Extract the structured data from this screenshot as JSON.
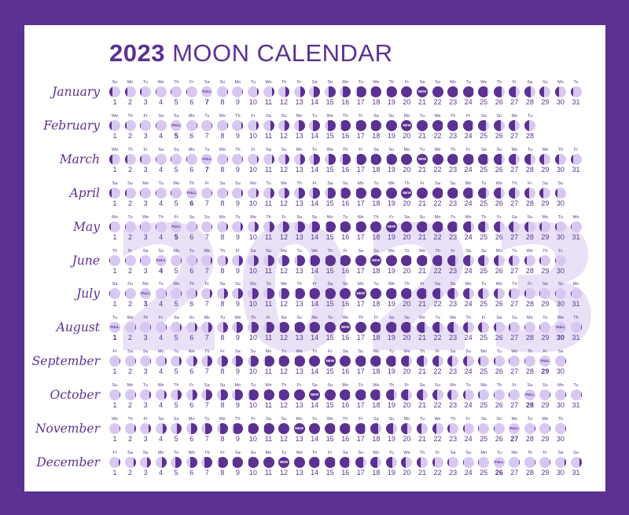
{
  "title": {
    "year": "2023",
    "rest": "MOON CALENDAR"
  },
  "background_year": "2023",
  "colors": {
    "frame": "#5b3192",
    "dark": "#5b3192",
    "light": "#d8c8f1",
    "watermark": "#e9e1f6"
  },
  "phase_labels": {
    "full": "FULL",
    "new": "NEW"
  },
  "months": [
    {
      "name": "January",
      "start_weekday": 0,
      "days": 31,
      "full_day": 7,
      "new_day": 21
    },
    {
      "name": "February",
      "start_weekday": 3,
      "days": 28,
      "full_day": 5,
      "new_day": 20
    },
    {
      "name": "March",
      "start_weekday": 3,
      "days": 31,
      "full_day": 7,
      "new_day": 21
    },
    {
      "name": "April",
      "start_weekday": 6,
      "days": 30,
      "full_day": 6,
      "new_day": 20
    },
    {
      "name": "May",
      "start_weekday": 1,
      "days": 31,
      "full_day": 5,
      "new_day": 19
    },
    {
      "name": "June",
      "start_weekday": 4,
      "days": 30,
      "full_day": 4,
      "new_day": 18
    },
    {
      "name": "July",
      "start_weekday": 6,
      "days": 31,
      "full_day": 3,
      "new_day": 17
    },
    {
      "name": "August",
      "start_weekday": 2,
      "days": 31,
      "full_day": 1,
      "new_day": 16,
      "full_day_2": 30
    },
    {
      "name": "September",
      "start_weekday": 5,
      "days": 30,
      "full_day": 29,
      "new_day": 15
    },
    {
      "name": "October",
      "start_weekday": 0,
      "days": 31,
      "full_day": 28,
      "new_day": 14
    },
    {
      "name": "November",
      "start_weekday": 3,
      "days": 30,
      "full_day": 27,
      "new_day": 13
    },
    {
      "name": "December",
      "start_weekday": 5,
      "days": 31,
      "full_day": 26,
      "new_day": 12
    }
  ],
  "weekday_abbr": [
    "Su",
    "Mo",
    "Tu",
    "We",
    "Th",
    "Fr",
    "Sa"
  ]
}
